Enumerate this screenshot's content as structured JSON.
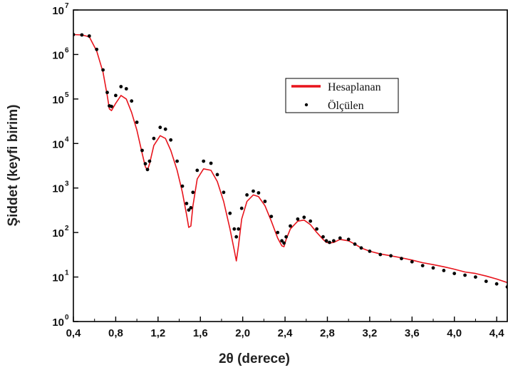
{
  "chart_data": {
    "type": "line",
    "xlabel": "2θ (derece)",
    "ylabel": "Şiddet (keyfi birim)",
    "xlim": [
      0.4,
      4.5
    ],
    "ylim": [
      1,
      10000000
    ],
    "yscale": "log",
    "x_ticks": [
      "0,4",
      "0,8",
      "1,2",
      "1,6",
      "2,0",
      "2,4",
      "2,8",
      "3,2",
      "3,6",
      "4,0",
      "4,4"
    ],
    "x_tick_values": [
      0.4,
      0.8,
      1.2,
      1.6,
      2.0,
      2.4,
      2.8,
      3.2,
      3.6,
      4.0,
      4.4
    ],
    "y_ticks": [
      {
        "base": "10",
        "exp": "0",
        "value": 1
      },
      {
        "base": "10",
        "exp": "1",
        "value": 10
      },
      {
        "base": "10",
        "exp": "2",
        "value": 100
      },
      {
        "base": "10",
        "exp": "3",
        "value": 1000
      },
      {
        "base": "10",
        "exp": "4",
        "value": 10000
      },
      {
        "base": "10",
        "exp": "5",
        "value": 100000
      },
      {
        "base": "10",
        "exp": "6",
        "value": 1000000
      },
      {
        "base": "10",
        "exp": "7",
        "value": 10000000
      }
    ],
    "legend_position": "top-right",
    "series": [
      {
        "name": "Hesaplanan",
        "style": "line",
        "color": "#e8141c",
        "x": [
          0.4,
          0.48,
          0.55,
          0.62,
          0.68,
          0.72,
          0.74,
          0.76,
          0.8,
          0.85,
          0.9,
          0.95,
          1.0,
          1.05,
          1.08,
          1.1,
          1.12,
          1.16,
          1.22,
          1.27,
          1.32,
          1.38,
          1.43,
          1.47,
          1.49,
          1.51,
          1.53,
          1.57,
          1.63,
          1.7,
          1.76,
          1.82,
          1.88,
          1.92,
          1.94,
          1.96,
          1.99,
          2.04,
          2.1,
          2.15,
          2.21,
          2.27,
          2.33,
          2.37,
          2.39,
          2.41,
          2.45,
          2.52,
          2.58,
          2.64,
          2.7,
          2.76,
          2.79,
          2.82,
          2.86,
          2.92,
          3.0,
          3.06,
          3.12,
          3.2,
          3.3,
          3.4,
          3.5,
          3.6,
          3.7,
          3.8,
          3.9,
          4.0,
          4.1,
          4.2,
          4.3,
          4.4,
          4.5
        ],
        "y": [
          2800000,
          2750000,
          2500000,
          1200000,
          400000,
          120000,
          60000,
          55000,
          80000,
          120000,
          100000,
          50000,
          20000,
          6000,
          3000,
          2500,
          3500,
          9000,
          15000,
          13000,
          7000,
          2500,
          800,
          250,
          130,
          140,
          400,
          1600,
          2700,
          2500,
          1400,
          500,
          120,
          40,
          23,
          50,
          200,
          500,
          700,
          640,
          400,
          180,
          75,
          50,
          48,
          70,
          120,
          180,
          190,
          150,
          100,
          70,
          60,
          58,
          60,
          70,
          65,
          55,
          45,
          38,
          33,
          30,
          27,
          24,
          21,
          19,
          17,
          15,
          13,
          12,
          10.5,
          9,
          7.5
        ]
      },
      {
        "name": "Ölçülen",
        "style": "markers",
        "color": "#000000",
        "x": [
          0.4,
          0.48,
          0.55,
          0.62,
          0.68,
          0.72,
          0.74,
          0.76,
          0.8,
          0.85,
          0.9,
          0.95,
          1.0,
          1.05,
          1.08,
          1.1,
          1.12,
          1.16,
          1.22,
          1.27,
          1.32,
          1.38,
          1.43,
          1.47,
          1.49,
          1.51,
          1.53,
          1.57,
          1.63,
          1.7,
          1.76,
          1.82,
          1.88,
          1.92,
          1.94,
          1.96,
          1.99,
          2.04,
          2.1,
          2.15,
          2.21,
          2.27,
          2.33,
          2.37,
          2.39,
          2.41,
          2.45,
          2.52,
          2.58,
          2.64,
          2.7,
          2.76,
          2.79,
          2.82,
          2.86,
          2.92,
          3.0,
          3.06,
          3.12,
          3.2,
          3.3,
          3.4,
          3.5,
          3.6,
          3.7,
          3.8,
          3.9,
          4.0,
          4.1,
          4.2,
          4.3,
          4.4,
          4.5
        ],
        "y": [
          2800000,
          2750000,
          2600000,
          1300000,
          450000,
          140000,
          70000,
          68000,
          120000,
          190000,
          170000,
          90000,
          30000,
          7000,
          3500,
          2600,
          4000,
          13000,
          23000,
          21000,
          12000,
          4000,
          1100,
          450,
          320,
          360,
          800,
          2500,
          4000,
          3600,
          2000,
          800,
          270,
          120,
          80,
          120,
          350,
          700,
          850,
          780,
          500,
          230,
          100,
          65,
          58,
          80,
          140,
          200,
          220,
          180,
          120,
          80,
          65,
          60,
          65,
          75,
          70,
          55,
          45,
          38,
          32,
          30,
          26,
          22,
          18,
          16,
          14,
          12,
          11,
          10,
          8,
          7,
          6
        ]
      }
    ]
  }
}
